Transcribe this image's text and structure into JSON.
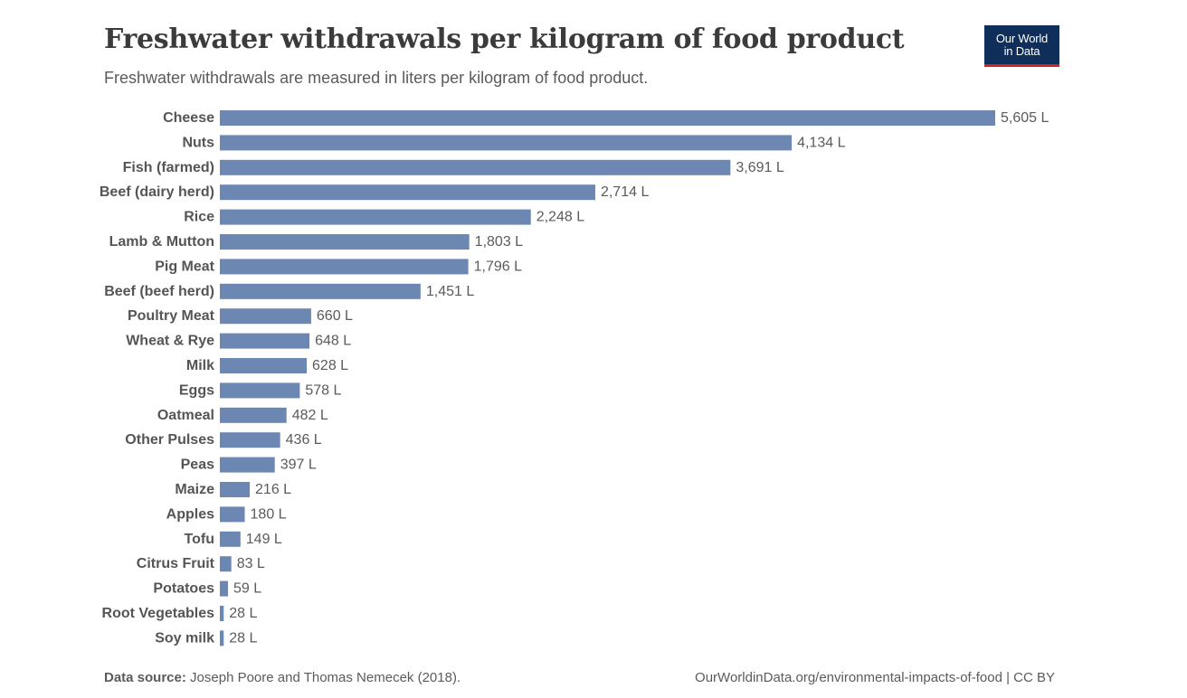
{
  "header": {
    "title": "Freshwater withdrawals per kilogram of food product",
    "subtitle": "Freshwater withdrawals are measured in liters per kilogram of food product."
  },
  "logo": {
    "line1": "Our World",
    "line2": "in Data"
  },
  "footer": {
    "source_label": "Data source:",
    "source_text": "Joseph Poore and Thomas Nemecek (2018).",
    "url_text": "OurWorldinData.org/environmental-impacts-of-food | CC BY"
  },
  "colors": {
    "bar": "#6d87b3",
    "logo_bg": "#0f2e5a",
    "logo_accent": "#ce261e"
  },
  "chart_data": {
    "type": "bar",
    "orientation": "horizontal",
    "title": "Freshwater withdrawals per kilogram of food product",
    "subtitle": "Freshwater withdrawals are measured in liters per kilogram of food product.",
    "unit_suffix": " L",
    "grid": false,
    "categories": [
      "Cheese",
      "Nuts",
      "Fish (farmed)",
      "Beef (dairy herd)",
      "Rice",
      "Lamb & Mutton",
      "Pig Meat",
      "Beef (beef herd)",
      "Poultry Meat",
      "Wheat & Rye",
      "Milk",
      "Eggs",
      "Oatmeal",
      "Other Pulses",
      "Peas",
      "Maize",
      "Apples",
      "Tofu",
      "Citrus Fruit",
      "Potatoes",
      "Root Vegetables",
      "Soy milk"
    ],
    "values": [
      5605,
      4134,
      3691,
      2714,
      2248,
      1803,
      1796,
      1451,
      660,
      648,
      628,
      578,
      482,
      436,
      397,
      216,
      180,
      149,
      83,
      59,
      28,
      28
    ],
    "value_labels": [
      "5,605 L",
      "4,134 L",
      "3,691 L",
      "2,714 L",
      "2,248 L",
      "1,803 L",
      "1,796 L",
      "1,451 L",
      "660 L",
      "648 L",
      "628 L",
      "578 L",
      "482 L",
      "436 L",
      "397 L",
      "216 L",
      "180 L",
      "149 L",
      "83 L",
      "59 L",
      "28 L",
      "28 L"
    ],
    "xlim": [
      0,
      5605
    ]
  }
}
